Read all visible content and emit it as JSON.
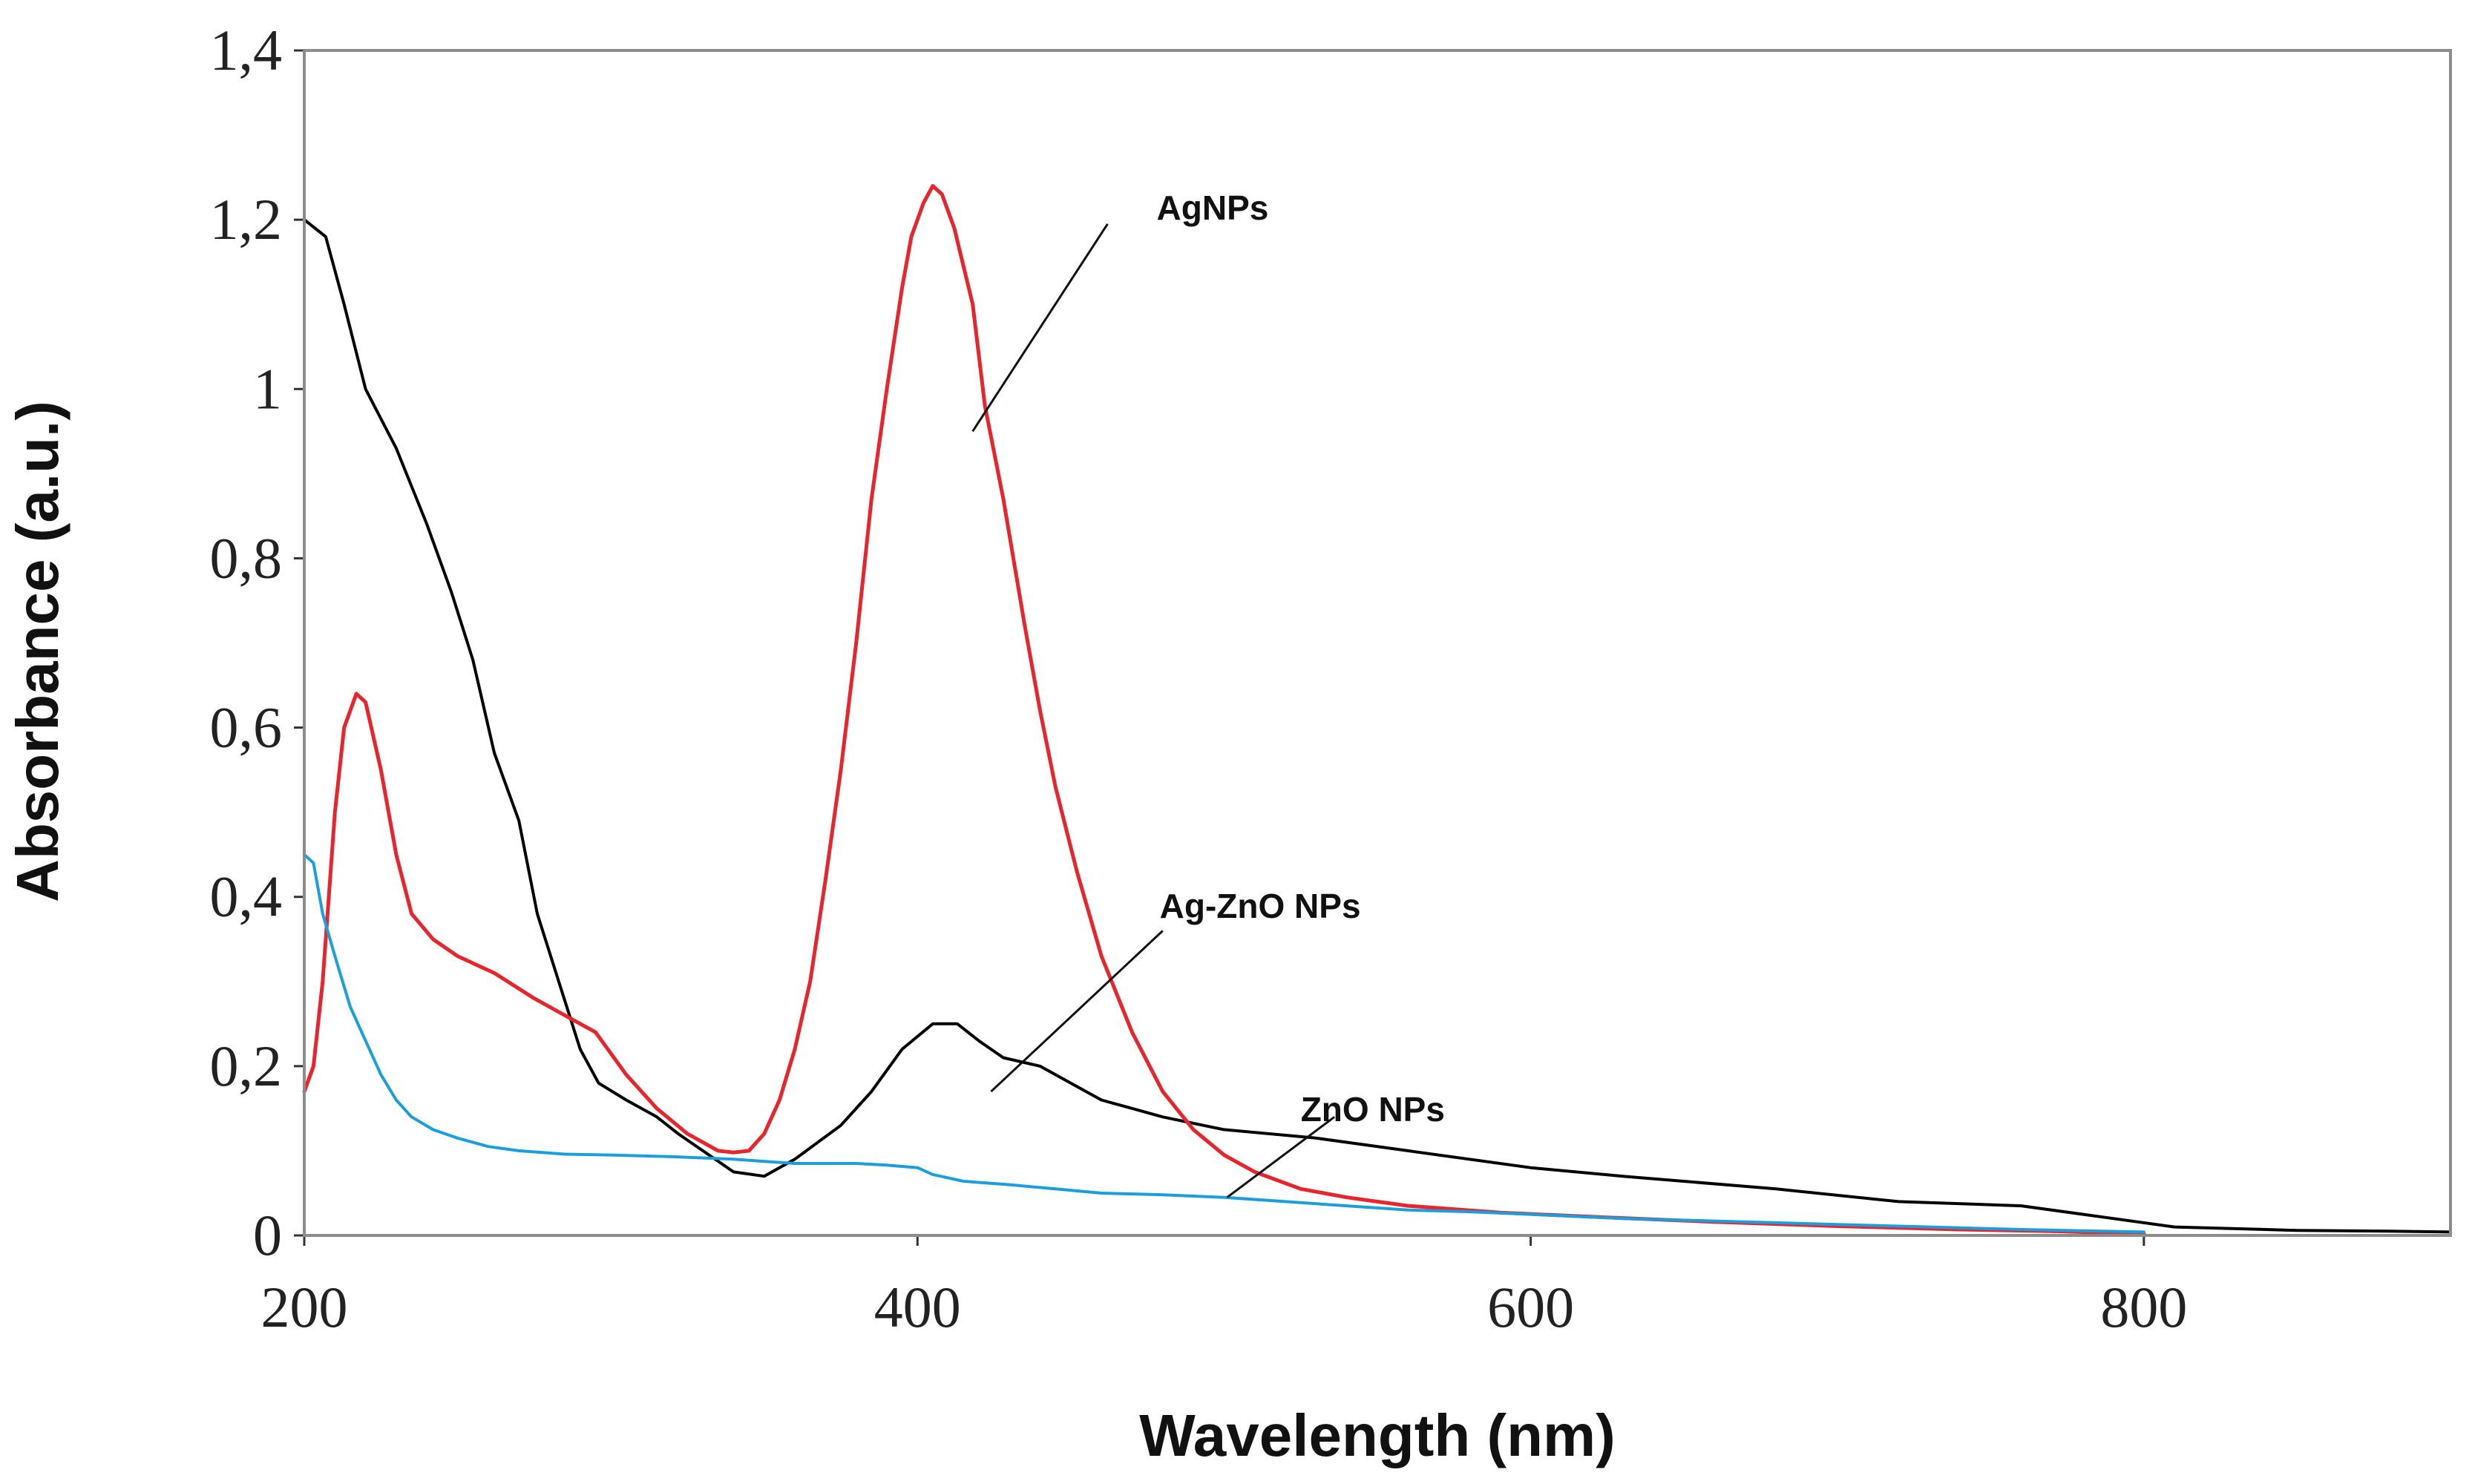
{
  "chart_data": {
    "type": "line",
    "xlabel": "Wavelength (nm)",
    "ylabel": "Absorbance (a.u.)",
    "xlim": [
      200,
      900
    ],
    "ylim": [
      0,
      1.4
    ],
    "xticks": [
      {
        "value": 200,
        "label": "200"
      },
      {
        "value": 400,
        "label": "400"
      },
      {
        "value": 600,
        "label": "600"
      },
      {
        "value": 800,
        "label": "800"
      }
    ],
    "yticks": [
      {
        "value": 0,
        "label": "0"
      },
      {
        "value": 0.2,
        "label": "0,2"
      },
      {
        "value": 0.4,
        "label": "0,4"
      },
      {
        "value": 0.6,
        "label": "0,6"
      },
      {
        "value": 0.8,
        "label": "0,8"
      },
      {
        "value": 1.0,
        "label": "1"
      },
      {
        "value": 1.2,
        "label": "1,2"
      },
      {
        "value": 1.4,
        "label": "1,4"
      }
    ],
    "grid": false,
    "series": [
      {
        "name": "Ag-ZnO NPs",
        "color": "#000000",
        "points": [
          [
            200,
            1.2
          ],
          [
            207,
            1.18
          ],
          [
            213,
            1.1
          ],
          [
            220,
            1.0
          ],
          [
            230,
            0.93
          ],
          [
            240,
            0.84
          ],
          [
            248,
            0.76
          ],
          [
            255,
            0.68
          ],
          [
            262,
            0.57
          ],
          [
            270,
            0.49
          ],
          [
            276,
            0.38
          ],
          [
            283,
            0.3
          ],
          [
            290,
            0.22
          ],
          [
            296,
            0.18
          ],
          [
            305,
            0.16
          ],
          [
            315,
            0.14
          ],
          [
            322,
            0.12
          ],
          [
            330,
            0.1
          ],
          [
            340,
            0.075
          ],
          [
            350,
            0.07
          ],
          [
            360,
            0.09
          ],
          [
            375,
            0.13
          ],
          [
            385,
            0.17
          ],
          [
            395,
            0.22
          ],
          [
            405,
            0.25
          ],
          [
            413,
            0.25
          ],
          [
            420,
            0.23
          ],
          [
            428,
            0.21
          ],
          [
            440,
            0.2
          ],
          [
            450,
            0.18
          ],
          [
            460,
            0.16
          ],
          [
            480,
            0.14
          ],
          [
            500,
            0.125
          ],
          [
            530,
            0.115
          ],
          [
            560,
            0.1
          ],
          [
            600,
            0.08
          ],
          [
            630,
            0.07
          ],
          [
            680,
            0.055
          ],
          [
            720,
            0.04
          ],
          [
            760,
            0.035
          ],
          [
            790,
            0.02
          ],
          [
            810,
            0.01
          ],
          [
            850,
            0.006
          ],
          [
            880,
            0.005
          ],
          [
            900,
            0.004
          ]
        ]
      },
      {
        "name": "AgNPs",
        "color": "#e8252c",
        "points": [
          [
            200,
            0.17
          ],
          [
            203,
            0.2
          ],
          [
            206,
            0.3
          ],
          [
            210,
            0.5
          ],
          [
            213,
            0.6
          ],
          [
            217,
            0.64
          ],
          [
            220,
            0.63
          ],
          [
            225,
            0.55
          ],
          [
            230,
            0.45
          ],
          [
            235,
            0.38
          ],
          [
            242,
            0.35
          ],
          [
            250,
            0.33
          ],
          [
            262,
            0.31
          ],
          [
            275,
            0.28
          ],
          [
            285,
            0.26
          ],
          [
            295,
            0.24
          ],
          [
            305,
            0.19
          ],
          [
            315,
            0.15
          ],
          [
            325,
            0.12
          ],
          [
            335,
            0.1
          ],
          [
            340,
            0.098
          ],
          [
            345,
            0.1
          ],
          [
            350,
            0.12
          ],
          [
            355,
            0.16
          ],
          [
            360,
            0.22
          ],
          [
            365,
            0.3
          ],
          [
            370,
            0.42
          ],
          [
            375,
            0.55
          ],
          [
            380,
            0.7
          ],
          [
            385,
            0.87
          ],
          [
            390,
            1.0
          ],
          [
            395,
            1.12
          ],
          [
            398,
            1.18
          ],
          [
            402,
            1.22
          ],
          [
            405,
            1.24
          ],
          [
            408,
            1.23
          ],
          [
            412,
            1.19
          ],
          [
            418,
            1.1
          ],
          [
            422,
            0.98
          ],
          [
            428,
            0.87
          ],
          [
            435,
            0.72
          ],
          [
            440,
            0.62
          ],
          [
            445,
            0.53
          ],
          [
            452,
            0.43
          ],
          [
            460,
            0.33
          ],
          [
            470,
            0.24
          ],
          [
            480,
            0.17
          ],
          [
            490,
            0.125
          ],
          [
            500,
            0.095
          ],
          [
            510,
            0.075
          ],
          [
            525,
            0.055
          ],
          [
            540,
            0.045
          ],
          [
            560,
            0.035
          ],
          [
            590,
            0.027
          ],
          [
            620,
            0.022
          ],
          [
            660,
            0.016
          ],
          [
            700,
            0.011
          ],
          [
            740,
            0.007
          ],
          [
            770,
            0.005
          ],
          [
            800,
            0.002
          ]
        ]
      },
      {
        "name": "ZnO NPs",
        "color": "#1a9fdc",
        "points": [
          [
            200,
            0.45
          ],
          [
            203,
            0.44
          ],
          [
            206,
            0.38
          ],
          [
            210,
            0.33
          ],
          [
            215,
            0.27
          ],
          [
            220,
            0.23
          ],
          [
            225,
            0.19
          ],
          [
            230,
            0.16
          ],
          [
            235,
            0.14
          ],
          [
            242,
            0.125
          ],
          [
            250,
            0.115
          ],
          [
            260,
            0.105
          ],
          [
            270,
            0.1
          ],
          [
            285,
            0.096
          ],
          [
            300,
            0.095
          ],
          [
            320,
            0.093
          ],
          [
            340,
            0.09
          ],
          [
            360,
            0.085
          ],
          [
            380,
            0.085
          ],
          [
            390,
            0.083
          ],
          [
            400,
            0.08
          ],
          [
            405,
            0.072
          ],
          [
            415,
            0.064
          ],
          [
            430,
            0.06
          ],
          [
            445,
            0.055
          ],
          [
            460,
            0.05
          ],
          [
            480,
            0.048
          ],
          [
            500,
            0.045
          ],
          [
            520,
            0.04
          ],
          [
            540,
            0.035
          ],
          [
            560,
            0.03
          ],
          [
            580,
            0.028
          ],
          [
            600,
            0.025
          ],
          [
            630,
            0.02
          ],
          [
            660,
            0.017
          ],
          [
            700,
            0.013
          ],
          [
            730,
            0.01
          ],
          [
            760,
            0.007
          ],
          [
            800,
            0.004
          ]
        ]
      }
    ],
    "annotations": [
      {
        "text": "AgNPs",
        "target_series": "AgNPs",
        "text_at": [
          478,
          1.2
        ],
        "line_from": [
          462,
          1.195
        ],
        "line_to": [
          418,
          0.95
        ]
      },
      {
        "text": "Ag-ZnO NPs",
        "target_series": "Ag-ZnO NPs",
        "text_at": [
          479,
          0.375
        ],
        "line_from": [
          480,
          0.36
        ],
        "line_to": [
          424,
          0.17
        ]
      },
      {
        "text": "ZnO NPs",
        "target_series": "ZnO NPs",
        "text_at": [
          525,
          0.135
        ],
        "line_from": [
          536,
          0.14
        ],
        "line_to": [
          501,
          0.045
        ]
      }
    ]
  }
}
